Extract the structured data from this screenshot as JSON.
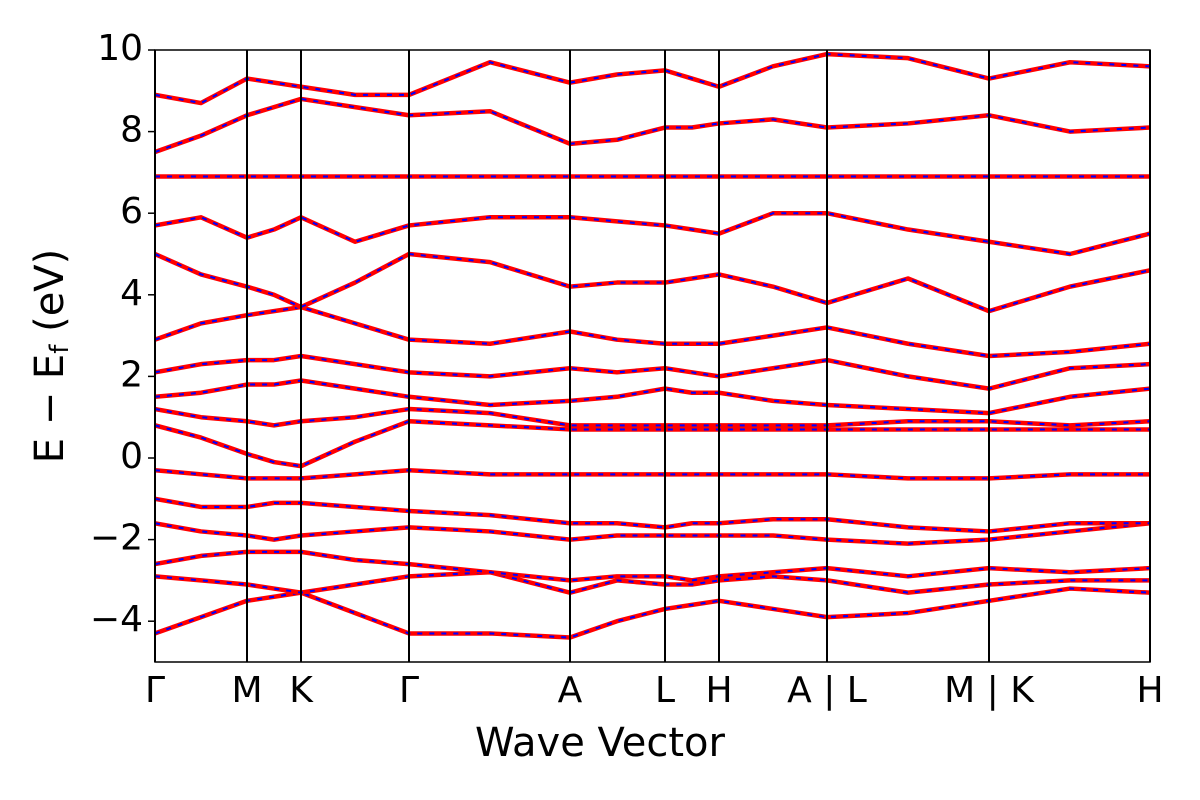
{
  "chart_data": {
    "type": "line",
    "ylabel": [
      "E − E",
      "f",
      " (eV)"
    ],
    "xlabel": "Wave Vector",
    "x": [
      0,
      0.46,
      0.92,
      1.19,
      1.46,
      2.0,
      2.54,
      3.35,
      4.15,
      4.62,
      5.1,
      5.37,
      5.64,
      6.18,
      6.72,
      7.53,
      8.34,
      9.15,
      9.95
    ],
    "xlim": [
      0,
      9.95
    ],
    "xticks": [
      {
        "value": 0,
        "label": "Γ"
      },
      {
        "value": 0.92,
        "label": "M"
      },
      {
        "value": 1.46,
        "label": "K"
      },
      {
        "value": 2.54,
        "label": "Γ"
      },
      {
        "value": 4.15,
        "label": "A"
      },
      {
        "value": 5.1,
        "label": "L"
      },
      {
        "value": 5.64,
        "label": "H"
      },
      {
        "value": 6.72,
        "label": "A | L"
      },
      {
        "value": 8.34,
        "label": "M | K"
      },
      {
        "value": 9.95,
        "label": "H"
      }
    ],
    "ylim": [
      -5,
      10
    ],
    "yticks": [
      {
        "value": -4,
        "label": "−4"
      },
      {
        "value": -2,
        "label": "−2"
      },
      0,
      2,
      4,
      6,
      8,
      10
    ],
    "overlay_color": "#0000ff",
    "series": [
      {
        "color": "#ff0000",
        "values": [
          -4.3,
          -3.9,
          -3.5,
          -3.4,
          -3.3,
          -3.8,
          -4.3,
          -4.3,
          -4.4,
          -4.0,
          -3.7,
          -3.6,
          -3.5,
          -3.7,
          -3.9,
          -3.8,
          -3.5,
          -3.2,
          -3.3
        ]
      },
      {
        "color": "#ff0000",
        "values": [
          -2.9,
          -3.0,
          -3.1,
          -3.2,
          -3.3,
          -3.1,
          -2.9,
          -2.8,
          -3.3,
          -3.0,
          -3.1,
          -3.1,
          -3.0,
          -2.9,
          -3.0,
          -3.3,
          -3.1,
          -3.0,
          -3.0
        ]
      },
      {
        "color": "#ff0000",
        "values": [
          -2.6,
          -2.4,
          -2.3,
          -2.3,
          -2.3,
          -2.5,
          -2.6,
          -2.8,
          -3.0,
          -2.9,
          -2.9,
          -3.0,
          -2.9,
          -2.8,
          -2.7,
          -2.9,
          -2.7,
          -2.8,
          -2.7
        ]
      },
      {
        "color": "#ff0000",
        "values": [
          -1.6,
          -1.8,
          -1.9,
          -2.0,
          -1.9,
          -1.8,
          -1.7,
          -1.8,
          -2.0,
          -1.9,
          -1.9,
          -1.9,
          -1.9,
          -1.9,
          -2.0,
          -2.1,
          -2.0,
          -1.8,
          -1.6
        ]
      },
      {
        "color": "#ff0000",
        "values": [
          -1.0,
          -1.2,
          -1.2,
          -1.1,
          -1.1,
          -1.2,
          -1.3,
          -1.4,
          -1.6,
          -1.6,
          -1.7,
          -1.6,
          -1.6,
          -1.5,
          -1.5,
          -1.7,
          -1.8,
          -1.6,
          -1.6
        ]
      },
      {
        "color": "#ff0000",
        "values": [
          -0.3,
          -0.4,
          -0.5,
          -0.5,
          -0.5,
          -0.4,
          -0.3,
          -0.4,
          -0.4,
          -0.4,
          -0.4,
          -0.4,
          -0.4,
          -0.4,
          -0.4,
          -0.5,
          -0.5,
          -0.4,
          -0.4
        ]
      },
      {
        "color": "#ff0000",
        "values": [
          0.8,
          0.5,
          0.1,
          -0.1,
          -0.2,
          0.4,
          0.9,
          0.8,
          0.7,
          0.7,
          0.7,
          0.7,
          0.7,
          0.7,
          0.7,
          0.7,
          0.7,
          0.7,
          0.7
        ]
      },
      {
        "color": "#ff0000",
        "values": [
          1.2,
          1.0,
          0.9,
          0.8,
          0.9,
          1.0,
          1.2,
          1.1,
          0.8,
          0.8,
          0.8,
          0.8,
          0.8,
          0.8,
          0.8,
          0.9,
          0.9,
          0.8,
          0.9
        ]
      },
      {
        "color": "#ff0000",
        "values": [
          1.5,
          1.6,
          1.8,
          1.8,
          1.9,
          1.7,
          1.5,
          1.3,
          1.4,
          1.5,
          1.7,
          1.6,
          1.6,
          1.4,
          1.3,
          1.2,
          1.1,
          1.5,
          1.7
        ]
      },
      {
        "color": "#ff0000",
        "values": [
          2.1,
          2.3,
          2.4,
          2.4,
          2.5,
          2.3,
          2.1,
          2.0,
          2.2,
          2.1,
          2.2,
          2.1,
          2.0,
          2.2,
          2.4,
          2.0,
          1.7,
          2.2,
          2.3
        ]
      },
      {
        "color": "#ff0000",
        "values": [
          2.9,
          3.3,
          3.5,
          3.6,
          3.7,
          3.3,
          2.9,
          2.8,
          3.1,
          2.9,
          2.8,
          2.8,
          2.8,
          3.0,
          3.2,
          2.8,
          2.5,
          2.6,
          2.8
        ]
      },
      {
        "color": "#ff0000",
        "values": [
          5.0,
          4.5,
          4.2,
          4.0,
          3.7,
          4.3,
          5.0,
          4.8,
          4.2,
          4.3,
          4.3,
          4.4,
          4.5,
          4.2,
          3.8,
          4.4,
          3.6,
          4.2,
          4.6
        ]
      },
      {
        "color": "#ff0000",
        "values": [
          5.7,
          5.9,
          5.4,
          5.6,
          5.9,
          5.3,
          5.7,
          5.9,
          5.9,
          5.8,
          5.7,
          5.6,
          5.5,
          6.0,
          6.0,
          5.6,
          5.3,
          5.0,
          5.5
        ]
      },
      {
        "color": "#ff0000",
        "values": [
          6.9,
          6.9,
          6.9,
          6.9,
          6.9,
          6.9,
          6.9,
          6.9,
          6.9,
          6.9,
          6.9,
          6.9,
          6.9,
          6.9,
          6.9,
          6.9,
          6.9,
          6.9,
          6.9
        ]
      },
      {
        "color": "#ff0000",
        "values": [
          7.5,
          7.9,
          8.4,
          8.6,
          8.8,
          8.6,
          8.4,
          8.5,
          7.7,
          7.8,
          8.1,
          8.1,
          8.2,
          8.3,
          8.1,
          8.2,
          8.4,
          8.0,
          8.1
        ]
      },
      {
        "color": "#ff0000",
        "values": [
          8.9,
          8.7,
          9.3,
          9.2,
          9.1,
          8.9,
          8.9,
          9.7,
          9.2,
          9.4,
          9.5,
          9.3,
          9.1,
          9.6,
          9.9,
          9.8,
          9.3,
          9.7,
          9.6
        ]
      }
    ]
  }
}
